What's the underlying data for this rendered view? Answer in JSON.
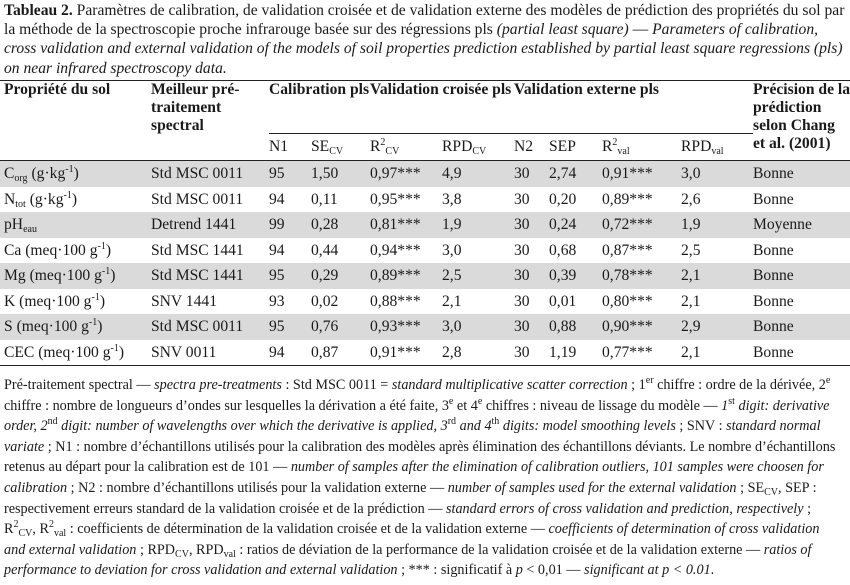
{
  "caption": {
    "label": "Tableau 2.",
    "text_fr": "Paramètres de calibration, de validation croisée et de validation externe des modèles de prédiction des propriétés du sol par la méthode de la spectroscopie proche infrarouge basée sur des régressions pls",
    "pls_paren": "(partial least square)",
    "dash": "—",
    "text_en": "Parameters of calibration, cross validation and external validation of the models of soil properties prediction established by partial least square regressions (pls) on near infrared spectroscopy data."
  },
  "headers": {
    "propriete": "Propriété du sol",
    "pretraitement": "Meilleur pré-traitement spectral",
    "calibration": "Calibration pls",
    "validation_croisee": "Validation croisée pls",
    "validation_externe": "Validation externe pls",
    "precision": "Précision de la prédiction selon Chang et al. (2001)",
    "N1": "N1",
    "SE": "SE",
    "SE_sub": "CV",
    "R2cv": "R",
    "R2cv_sup": "2",
    "R2cv_sub": "CV",
    "RPDcv": "RPD",
    "RPDcv_sub": "CV",
    "N2": "N2",
    "SEP": "SEP",
    "R2val": "R",
    "R2val_sup": "2",
    "R2val_sub": "val",
    "RPDval": "RPD",
    "RPDval_sub": "val"
  },
  "rows": [
    {
      "prop_main": "C",
      "prop_sub": "org",
      "prop_unit": " (g·kg",
      "prop_sup": "-1",
      "prop_close": ")",
      "pre": "Std MSC 0011",
      "n1": "95",
      "se": "1,50",
      "r2cv": "0,97***",
      "rpdcv": "4,9",
      "n2": "30",
      "sep": "2,74",
      "r2val": "0,91***",
      "rpdval": "3,0",
      "prec": "Bonne"
    },
    {
      "prop_main": "N",
      "prop_sub": "tot",
      "prop_unit": " (g·kg",
      "prop_sup": "-1",
      "prop_close": ")",
      "pre": "Std MSC 0011",
      "n1": "94",
      "se": "0,11",
      "r2cv": "0,95***",
      "rpdcv": "3,8",
      "n2": "30",
      "sep": "0,20",
      "r2val": "0,89***",
      "rpdval": "2,6",
      "prec": "Bonne"
    },
    {
      "prop_main": "pH",
      "prop_sub": "eau",
      "prop_unit": "",
      "prop_sup": "",
      "prop_close": "",
      "pre": "Detrend 1441",
      "n1": "99",
      "se": "0,28",
      "r2cv": "0,81***",
      "rpdcv": "1,9",
      "n2": "30",
      "sep": "0,24",
      "r2val": "0,72***",
      "rpdval": "1,9",
      "prec": "Moyenne"
    },
    {
      "prop_main": "Ca",
      "prop_sub": "",
      "prop_unit": " (meq·100 g",
      "prop_sup": "-1",
      "prop_close": ")",
      "pre": "Std MSC 1441",
      "n1": "94",
      "se": "0,44",
      "r2cv": "0,94***",
      "rpdcv": "3,0",
      "n2": "30",
      "sep": "0,68",
      "r2val": "0,87***",
      "rpdval": "2,5",
      "prec": "Bonne"
    },
    {
      "prop_main": "Mg",
      "prop_sub": "",
      "prop_unit": " (meq·100 g",
      "prop_sup": "-1",
      "prop_close": ")",
      "pre": "Std MSC 1441",
      "n1": "95",
      "se": "0,29",
      "r2cv": "0,89***",
      "rpdcv": "2,5",
      "n2": "30",
      "sep": "0,39",
      "r2val": "0,78***",
      "rpdval": "2,1",
      "prec": "Bonne"
    },
    {
      "prop_main": "K",
      "prop_sub": "",
      "prop_unit": " (meq·100 g",
      "prop_sup": "-1",
      "prop_close": ")",
      "pre": "SNV 1441",
      "n1": "93",
      "se": "0,02",
      "r2cv": "0,88***",
      "rpdcv": "2,1",
      "n2": "30",
      "sep": "0,01",
      "r2val": "0,80***",
      "rpdval": "2,1",
      "prec": "Bonne"
    },
    {
      "prop_main": "S",
      "prop_sub": "",
      "prop_unit": " (meq·100 g",
      "prop_sup": "-1",
      "prop_close": ")",
      "pre": "Std MSC 0011",
      "n1": "95",
      "se": "0,76",
      "r2cv": "0,93***",
      "rpdcv": "3,0",
      "n2": "30",
      "sep": "0,88",
      "r2val": "0,90***",
      "rpdval": "2,9",
      "prec": "Bonne"
    },
    {
      "prop_main": "CEC",
      "prop_sub": "",
      "prop_unit": " (meq·100 g",
      "prop_sup": "-1",
      "prop_close": ")",
      "pre": "SNV 0011",
      "n1": "94",
      "se": "0,87",
      "r2cv": "0,91***",
      "rpdcv": "2,8",
      "n2": "30",
      "sep": "1,19",
      "r2val": "0,77***",
      "rpdval": "2,1",
      "prec": "Bonne"
    }
  ],
  "notes": {
    "n01": "Pré-traitement spectral — ",
    "n02": "spectra pre-treatments",
    "n03": " : Std MSC 0011 = ",
    "n04": "standard multiplicative scatter correction",
    "n05": " ; 1",
    "n05s": "er",
    "n06": " chiffre : ordre de la dérivée, 2",
    "n06s": "e",
    "n07": " chiffre : nombre de longueurs d’ondes sur lesquelles la dérivation a été faite, 3",
    "n07s": "e",
    "n08": " et 4",
    "n08s": "e",
    "n09": " chiffres : niveau de lissage du modèle — ",
    "n10": "1",
    "n10s": "st",
    "n11": " digit: derivative order, 2",
    "n11s": "nd",
    "n12": " digit: number of wavelengths over which the derivative is applied, 3",
    "n12s": "rd",
    "n13": " and 4",
    "n13s": "th",
    "n14": " digits: model smoothing levels",
    "n15": " ; SNV : ",
    "n16": "standard normal variate",
    "n17": " ; N1 : nombre d’échantillons utilisés pour la calibration des modèles après élimination des échantillons déviants. Le nombre d’échantillons retenus au départ pour la calibration est de 101 — ",
    "n18": "number of samples after the elimination of calibration outliers, 101 samples were choosen for calibration",
    "n19": " ; N2 : nombre d’échantillons utilisés pour la validation externe — ",
    "n20": "number of samples used for the external validation",
    "n21": " ; SE",
    "n21b": "CV",
    "n22": ", SEP : respectivement erreurs standard de la validation croisée et de la prédiction — ",
    "n23": "standard errors of cross validation and prediction, respectively",
    "n24": " ; R",
    "n24s": "2",
    "n24b": "CV",
    "n25": ", R",
    "n25s": "2",
    "n25b": "val",
    "n26": " : coefficients de détermination de la validation croisée et de la validation externe — ",
    "n27": "coefficients of determination of cross validation and external validation",
    "n28": " ; RPD",
    "n28b": "CV",
    "n29": ", RPD",
    "n29b": "val",
    "n30": " : ratios de déviation de la performance de la validation croisée et de la validation externe — ",
    "n31": "ratios of performance to deviation for cross validation and external validation",
    "n32": " ; *** : significatif à ",
    "n33": "p",
    "n34": " < 0,01 — ",
    "n35": "significant at",
    "n36": " p",
    "n37": " < 0.01",
    "n38": "."
  }
}
